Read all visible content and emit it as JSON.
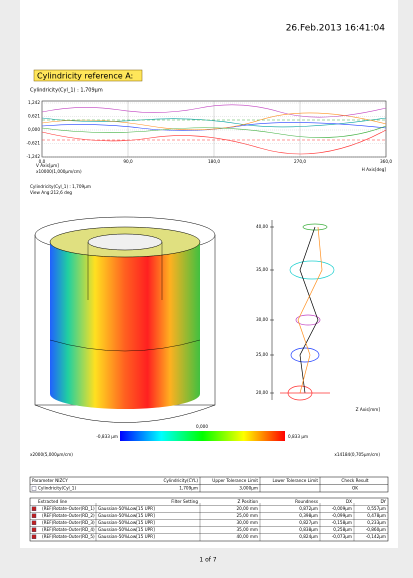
{
  "header": {
    "date": "26.Feb.2013 16:41:04"
  },
  "section_title": "Cylindricity reference A:",
  "profile_plot": {
    "label": "Cylindricity(Cyl_1) : 1,709µm",
    "yticks": [
      "1,242",
      "0,621",
      "0,000",
      "-0,621",
      "-1,242"
    ],
    "xticks": [
      "0,0",
      "90,0",
      "180,0",
      "270,0",
      "360,0"
    ],
    "y_axis_label": "V Axis[µm]",
    "y_scale": "x10000(1,000µm/cm)",
    "x_axis_label": "H Axis[deg]"
  },
  "cylinder_view": {
    "label": "Cylindricity(Cyl_1) : 1,709µm",
    "view_angle": "View Ang:212,6 deg",
    "colorbar": {
      "mid": "0,000",
      "min": "-0,833 µm",
      "max": "0,833 µm"
    },
    "scale": "x2000(5,000µm/cm)"
  },
  "roundness_plot": {
    "zticks": [
      "40,00",
      "35,00",
      "30,00",
      "25,00",
      "20,00"
    ],
    "z_axis_label": "Z Axis[mm]",
    "scale": "x14184(0,705µm/cm)"
  },
  "table": {
    "headers": [
      "Parameter NIZCY",
      "Cylindricity(CYL)",
      "Upper Tolerance Limit",
      "Lower Tolerance Limit",
      "Check Result"
    ],
    "row": [
      "Cylindricity(Cyl_1)",
      "1,709µm",
      "3,000µm",
      null,
      "OK"
    ]
  },
  "lines_table": {
    "headers": [
      "Extracted line",
      "Filter Setting",
      "Z Position",
      "Roundness",
      "DX",
      "DY"
    ],
    "rows": [
      [
        "(REF)Rotate-Outer(RD_1)",
        "Gaussian-50%Low[15 UPR]",
        "20,00 mm",
        "0,872µm",
        "-0,009µm",
        "0,557µm"
      ],
      [
        "(REF)Rotate-Outer(RD_2)",
        "Gaussian-50%Low[15 UPR]",
        "25,00 mm",
        "0,398µm",
        "-0,099µm",
        "0,478µm"
      ],
      [
        "(REF)Rotate-Outer(RD_3)",
        "Gaussian-50%Low[15 UPR]",
        "30,00 mm",
        "0,827µm",
        "-0,158µm",
        "0,233µm"
      ],
      [
        "(REF)Rotate-Outer(RD_4)",
        "Gaussian-50%Low[15 UPR]",
        "35,00 mm",
        "0,838µm",
        "0,258µm",
        "-0,860µm"
      ],
      [
        "(REF)Rotate-Outer(RD_5)",
        "Gaussian-50%Low[15 UPR]",
        "40,00 mm",
        "0,824µm",
        "-0,073µm",
        "-0,142µm"
      ]
    ]
  },
  "footer": {
    "page": "1 of 7"
  }
}
